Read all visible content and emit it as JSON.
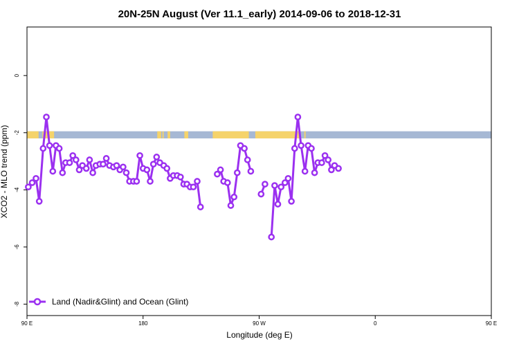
{
  "chart_data": {
    "type": "line",
    "title": "20N-25N August (Ver 11.1_early)   2014-09-06 to 2018-12-31",
    "xlabel": "Longitude (deg E)",
    "ylabel": "XCO2 - MLO trend (ppm)",
    "xlim": [
      90,
      450
    ],
    "ylim": [
      -8.4,
      1.7
    ],
    "x_ticks": [
      {
        "value": 90,
        "label": "90 E"
      },
      {
        "value": 180,
        "label": "180"
      },
      {
        "value": 270,
        "label": "90 W"
      },
      {
        "value": 360,
        "label": "0"
      },
      {
        "value": 450,
        "label": "90 E"
      },
      {
        "value": 540,
        "label": "180"
      }
    ],
    "y_ticks": [
      {
        "value": 0,
        "label": "0"
      },
      {
        "value": -2,
        "label": "-2"
      },
      {
        "value": -4,
        "label": "-4"
      },
      {
        "value": -6,
        "label": "-6"
      },
      {
        "value": -8,
        "label": "-8"
      }
    ],
    "grid": false,
    "legend_position": "bottom-left",
    "colors": {
      "series": "#9b30f0",
      "land": "#f5d36b",
      "ocean": "#a6b8d4"
    },
    "series": [
      {
        "name": "Land (Nadir&Glint) and Ocean (Glint)",
        "points": [
          [
            91,
            -3.9
          ],
          [
            94,
            -3.75
          ],
          [
            97,
            -3.6
          ],
          [
            99.5,
            -4.4
          ],
          [
            102.5,
            -2.55
          ],
          [
            105,
            -1.45
          ],
          [
            107.5,
            -2.45
          ],
          [
            110,
            -3.35
          ],
          [
            112.5,
            -2.45
          ],
          [
            115,
            -2.55
          ],
          [
            117.5,
            -3.4
          ],
          [
            120,
            -3.05
          ],
          [
            123,
            -3.05
          ],
          [
            125.5,
            -2.8
          ],
          [
            128,
            -2.95
          ],
          [
            130.5,
            -3.3
          ],
          [
            133,
            -3.15
          ],
          [
            136,
            -3.25
          ],
          [
            138.5,
            -2.95
          ],
          [
            141,
            -3.4
          ],
          [
            143.5,
            -3.15
          ],
          [
            146.5,
            -3.1
          ],
          [
            149,
            -3.1
          ],
          [
            151.5,
            -2.9
          ],
          [
            154,
            -3.15
          ],
          [
            157,
            -3.2
          ],
          [
            159.5,
            -3.15
          ],
          [
            162,
            -3.3
          ],
          [
            164.5,
            -3.2
          ],
          [
            167,
            -3.4
          ],
          [
            169.5,
            -3.7
          ],
          [
            172.5,
            -3.7
          ],
          [
            175,
            -3.7
          ],
          [
            177.5,
            -2.8
          ],
          [
            180,
            -3.25
          ],
          [
            183,
            -3.3
          ],
          [
            185.5,
            -3.7
          ],
          [
            188,
            -3.1
          ],
          [
            190.5,
            -2.85
          ],
          [
            193,
            -3.05
          ],
          [
            196,
            -3.15
          ],
          [
            198.5,
            -3.25
          ],
          [
            201,
            -3.6
          ],
          [
            203.5,
            -3.5
          ],
          [
            206.5,
            -3.5
          ],
          [
            209,
            -3.55
          ],
          [
            211.5,
            -3.8
          ],
          [
            214,
            -3.8
          ],
          [
            216.5,
            -3.9
          ],
          [
            219,
            -3.9
          ],
          [
            222,
            -3.7
          ],
          [
            224.5,
            -4.6
          ],
          null,
          [
            237.5,
            -3.45
          ],
          [
            240,
            -3.3
          ],
          [
            242.5,
            -3.7
          ],
          [
            245.5,
            -3.75
          ],
          [
            248,
            -4.55
          ],
          [
            250.5,
            -4.25
          ],
          [
            253,
            -3.4
          ],
          [
            255.5,
            -2.45
          ],
          [
            258.5,
            -2.55
          ],
          [
            261,
            -2.95
          ],
          [
            263.5,
            -3.35
          ],
          null,
          [
            271.5,
            -4.15
          ],
          [
            274.5,
            -3.8
          ],
          null,
          [
            279.5,
            -5.65
          ],
          [
            282,
            -3.85
          ],
          [
            284.5,
            -4.5
          ],
          [
            287,
            -3.9
          ],
          [
            290,
            -3.75
          ],
          [
            292.5,
            -3.6
          ],
          [
            295,
            -4.4
          ],
          [
            297.5,
            -2.55
          ],
          [
            300,
            -1.45
          ],
          [
            302.5,
            -2.45
          ],
          [
            305.5,
            -3.35
          ],
          [
            308,
            -2.45
          ],
          [
            310.5,
            -2.55
          ],
          [
            313,
            -3.4
          ],
          [
            315.5,
            -3.05
          ],
          [
            318.5,
            -3.05
          ],
          [
            321,
            -2.8
          ],
          [
            323.5,
            -2.95
          ],
          [
            326,
            -3.3
          ],
          [
            328.5,
            -3.15
          ],
          [
            331.5,
            -3.25
          ]
        ]
      }
    ]
  }
}
